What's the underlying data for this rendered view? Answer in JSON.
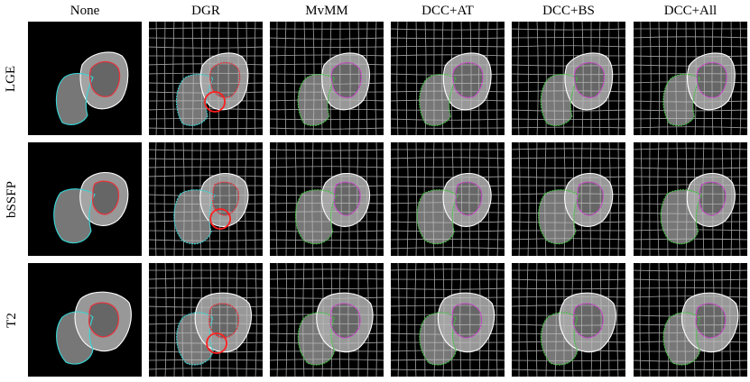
{
  "columns": [
    "None",
    "DGR",
    "MvMM",
    "DCC+AT",
    "DCC+BS",
    "DCC+All"
  ],
  "rows": [
    "LGE",
    "bSSFP",
    "T2"
  ],
  "colors": {
    "background": "#000000",
    "tissue": "#8c8c8c",
    "myocardium_contour": "#ffffff",
    "right_ventricle_contour_baseline": "#35d6d6",
    "left_ventricle_contour_baseline": "#e8323c",
    "error_highlight_circle": "#ff1e1e",
    "right_ventricle_contour_method": "#3ec33e",
    "left_ventricle_contour_method": "#d23bd2",
    "deformation_grid": "#bfbfbf"
  },
  "panels_content": {
    "None": {
      "grid": false,
      "rv_color": "cyan",
      "lv_color": "red",
      "error_circle": false
    },
    "DGR": {
      "grid": true,
      "rv_color": "cyan",
      "lv_color": "red",
      "error_circle": true
    },
    "MvMM": {
      "grid": true,
      "rv_color": "green",
      "lv_color": "magenta",
      "error_circle": false
    },
    "DCC+AT": {
      "grid": true,
      "rv_color": "green",
      "lv_color": "magenta",
      "error_circle": false
    },
    "DCC+BS": {
      "grid": true,
      "rv_color": "green",
      "lv_color": "magenta",
      "error_circle": false
    },
    "DCC+All": {
      "grid": true,
      "rv_color": "green",
      "lv_color": "magenta",
      "error_circle": false
    }
  }
}
